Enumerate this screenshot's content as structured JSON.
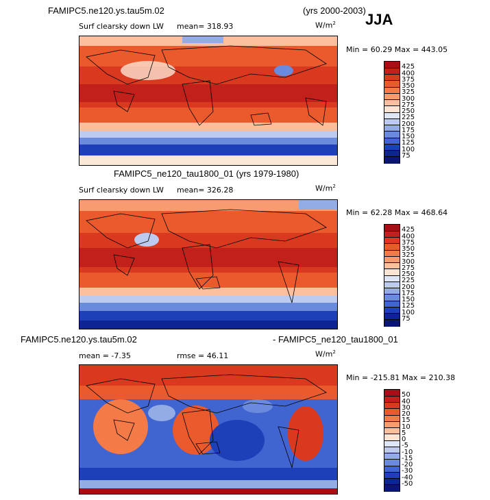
{
  "header": {
    "run_title": "FAMIPC5.ne120.ys.tau5m.02",
    "years": "(yrs 2000-2003)",
    "season": "JJA"
  },
  "panels": [
    {
      "title": "",
      "variable": "Surf clearsky down LW",
      "mean_label": "mean= 318.93",
      "units": "W/m",
      "units_exp": "2",
      "minmax": "Min =  60.29  Max = 443.05",
      "levels": [
        "425",
        "400",
        "375",
        "350",
        "325",
        "300",
        "275",
        "250",
        "225",
        "200",
        "175",
        "150",
        "125",
        "100",
        "75"
      ],
      "colors": [
        "#a50f15",
        "#c1201b",
        "#d8391f",
        "#ea5a2c",
        "#f47a47",
        "#f89c6f",
        "#fbbf9c",
        "#fde4d3",
        "#dfe6f6",
        "#bccbef",
        "#93ace6",
        "#6a8add",
        "#4064d0",
        "#1d3fb8",
        "#0e2494",
        "#0a1670"
      ]
    },
    {
      "title": "FAMIPC5_ne120_tau1800_01 (yrs 1979-1980)",
      "variable": "Surf clearsky down LW",
      "mean_label": "mean= 326.28",
      "units": "W/m",
      "units_exp": "2",
      "minmax": "Min =  62.28  Max = 468.64",
      "levels": [
        "425",
        "400",
        "375",
        "350",
        "325",
        "300",
        "275",
        "250",
        "225",
        "200",
        "175",
        "150",
        "125",
        "100",
        "75"
      ],
      "colors": [
        "#a50f15",
        "#c1201b",
        "#d8391f",
        "#ea5a2c",
        "#f47a47",
        "#f89c6f",
        "#fbbf9c",
        "#fde4d3",
        "#dfe6f6",
        "#bccbef",
        "#93ace6",
        "#6a8add",
        "#4064d0",
        "#1d3fb8",
        "#0e2494",
        "#0a1670"
      ]
    },
    {
      "title_left": "FAMIPC5.ne120.ys.tau5m.02",
      "title_right": "- FAMIPC5_ne120_tau1800_01",
      "mean_label": "mean =  -7.35",
      "rmse_label": "rmse =  46.11",
      "units": "W/m",
      "units_exp": "2",
      "minmax": "Min = -215.81  Max = 210.38",
      "levels": [
        "50",
        "40",
        "30",
        "20",
        "15",
        "10",
        "5",
        "0",
        "-5",
        "-10",
        "-15",
        "-20",
        "-30",
        "-40",
        "-50"
      ],
      "colors": [
        "#a50f15",
        "#c1201b",
        "#d8391f",
        "#ea5a2c",
        "#f47a47",
        "#f89c6f",
        "#fbbf9c",
        "#fde4d3",
        "#dfe6f6",
        "#bccbef",
        "#93ace6",
        "#6a8add",
        "#4064d0",
        "#1d3fb8",
        "#0e2494",
        "#0a1670"
      ]
    }
  ],
  "chart_data": [
    {
      "type": "heatmap",
      "title": "FAMIPC5.ne120.ys.tau5m.02 (yrs 2000-2003) JJA",
      "subtitle": "Surf clearsky down LW",
      "units": "W/m2",
      "mean": 318.93,
      "min": 60.29,
      "max": 443.05,
      "contour_levels": [
        75,
        100,
        125,
        150,
        175,
        200,
        225,
        250,
        275,
        300,
        325,
        350,
        375,
        400,
        425
      ]
    },
    {
      "type": "heatmap",
      "title": "FAMIPC5_ne120_tau1800_01 (yrs 1979-1980)",
      "subtitle": "Surf clearsky down LW",
      "units": "W/m2",
      "mean": 326.28,
      "min": 62.28,
      "max": 468.64,
      "contour_levels": [
        75,
        100,
        125,
        150,
        175,
        200,
        225,
        250,
        275,
        300,
        325,
        350,
        375,
        400,
        425
      ]
    },
    {
      "type": "heatmap",
      "title": "FAMIPC5.ne120.ys.tau5m.02 - FAMIPC5_ne120_tau1800_01",
      "units": "W/m2",
      "mean": -7.35,
      "rmse": 46.11,
      "min": -215.81,
      "max": 210.38,
      "contour_levels": [
        -50,
        -40,
        -30,
        -20,
        -15,
        -10,
        -5,
        0,
        5,
        10,
        15,
        20,
        30,
        40,
        50
      ]
    }
  ]
}
